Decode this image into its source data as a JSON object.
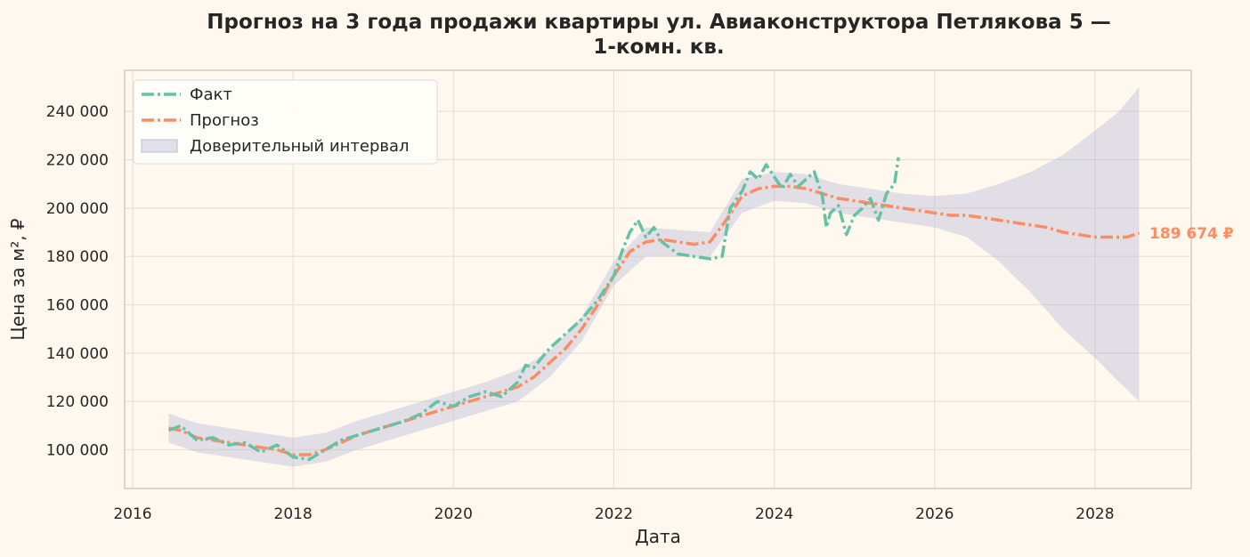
{
  "chart_data": {
    "type": "line",
    "title_line1": "Прогноз на 3 года продажи квартиры  ул. Авиаконструктора Петлякова 5 —",
    "title_line2": "1-комн. кв.",
    "xlabel": "Дата",
    "ylabel": "Цена за м², ₽",
    "xlim": [
      2015.9,
      2029.2
    ],
    "ylim": [
      84000,
      257000
    ],
    "x_ticks": [
      2016,
      2018,
      2020,
      2022,
      2024,
      2026,
      2028
    ],
    "x_tick_labels": [
      "2016",
      "2018",
      "2020",
      "2022",
      "2024",
      "2026",
      "2028"
    ],
    "y_ticks": [
      100000,
      120000,
      140000,
      160000,
      180000,
      200000,
      220000,
      240000
    ],
    "y_tick_labels": [
      "100 000",
      "120 000",
      "140 000",
      "160 000",
      "180 000",
      "200 000",
      "220 000",
      "240 000"
    ],
    "grid": true,
    "legend_position": "top-left",
    "legend": {
      "fact": "Факт",
      "forecast": "Прогноз",
      "interval": "Доверительный интервал"
    },
    "end_label": "189 674 ₽",
    "colors": {
      "fact": "#66c2a5",
      "forecast": "#fc8d62",
      "interval": "#b7bdd9",
      "background": "#fff8ee",
      "plot_background": "#fff8ee",
      "grid": "#e6e0d6"
    },
    "series": [
      {
        "name": "Факт",
        "x": [
          2016.45,
          2016.6,
          2016.8,
          2017.0,
          2017.2,
          2017.4,
          2017.6,
          2017.8,
          2018.0,
          2018.2,
          2018.4,
          2018.6,
          2018.8,
          2019.0,
          2019.2,
          2019.4,
          2019.6,
          2019.8,
          2020.0,
          2020.2,
          2020.4,
          2020.6,
          2020.8,
          2020.9,
          2021.0,
          2021.2,
          2021.4,
          2021.6,
          2021.8,
          2022.0,
          2022.1,
          2022.2,
          2022.3,
          2022.4,
          2022.5,
          2022.6,
          2022.8,
          2023.0,
          2023.2,
          2023.35,
          2023.45,
          2023.6,
          2023.7,
          2023.8,
          2023.9,
          2024.0,
          2024.1,
          2024.2,
          2024.3,
          2024.4,
          2024.5,
          2024.6,
          2024.65,
          2024.7,
          2024.8,
          2024.9,
          2025.0,
          2025.1,
          2025.2,
          2025.3,
          2025.4,
          2025.5,
          2025.55
        ],
        "values": [
          108000,
          110000,
          104000,
          105000,
          102000,
          103000,
          99000,
          102000,
          97000,
          96000,
          100000,
          104000,
          106000,
          108000,
          110000,
          112000,
          115000,
          120000,
          118000,
          122000,
          124000,
          122000,
          128000,
          135000,
          134000,
          142000,
          148000,
          154000,
          162000,
          172000,
          182000,
          190000,
          195000,
          188000,
          192000,
          186000,
          181000,
          180000,
          179000,
          180000,
          200000,
          207000,
          215000,
          212000,
          218000,
          213000,
          208000,
          214000,
          209000,
          212000,
          215000,
          205000,
          192000,
          198000,
          201000,
          189000,
          197000,
          200000,
          204000,
          195000,
          206000,
          210000,
          221000
        ]
      },
      {
        "name": "Прогноз",
        "x": [
          2016.45,
          2016.6,
          2016.8,
          2017.0,
          2017.2,
          2017.4,
          2017.6,
          2017.8,
          2018.0,
          2018.2,
          2018.4,
          2018.6,
          2018.8,
          2019.0,
          2019.2,
          2019.4,
          2019.6,
          2019.8,
          2020.0,
          2020.2,
          2020.4,
          2020.6,
          2020.8,
          2021.0,
          2021.2,
          2021.4,
          2021.6,
          2021.8,
          2022.0,
          2022.2,
          2022.4,
          2022.6,
          2022.8,
          2023.0,
          2023.2,
          2023.4,
          2023.6,
          2023.8,
          2024.0,
          2024.2,
          2024.4,
          2024.6,
          2024.8,
          2025.0,
          2025.2,
          2025.4,
          2025.6,
          2025.8,
          2026.0,
          2026.2,
          2026.4,
          2026.6,
          2026.8,
          2027.0,
          2027.2,
          2027.4,
          2027.6,
          2027.8,
          2028.0,
          2028.2,
          2028.4,
          2028.55
        ],
        "values": [
          109000,
          108000,
          105000,
          104000,
          103000,
          102000,
          101000,
          100000,
          98000,
          98000,
          100000,
          103000,
          106000,
          108000,
          110000,
          112000,
          114000,
          116000,
          118000,
          120000,
          122000,
          124000,
          126000,
          130000,
          136000,
          142000,
          150000,
          160000,
          172000,
          182000,
          186000,
          187000,
          186000,
          185000,
          186000,
          195000,
          205000,
          208000,
          209000,
          209000,
          208000,
          206000,
          204000,
          203000,
          202000,
          201000,
          200000,
          199000,
          198000,
          197000,
          197000,
          196000,
          195000,
          194000,
          193000,
          192000,
          190000,
          189000,
          188000,
          188000,
          188000,
          189674
        ]
      }
    ],
    "interval": {
      "x": [
        2016.45,
        2016.8,
        2017.2,
        2017.6,
        2018.0,
        2018.4,
        2018.8,
        2019.2,
        2019.6,
        2020.0,
        2020.4,
        2020.8,
        2021.2,
        2021.6,
        2022.0,
        2022.4,
        2022.8,
        2023.2,
        2023.6,
        2024.0,
        2024.4,
        2024.8,
        2025.2,
        2025.6,
        2026.0,
        2026.4,
        2026.8,
        2027.2,
        2027.6,
        2028.0,
        2028.3,
        2028.55
      ],
      "upper": [
        115000,
        111000,
        109000,
        107000,
        105000,
        107000,
        112000,
        116000,
        120000,
        124000,
        128000,
        133000,
        141000,
        155000,
        178000,
        192000,
        191000,
        190000,
        212000,
        215000,
        214000,
        210000,
        208000,
        206000,
        205000,
        206000,
        210000,
        215000,
        222000,
        232000,
        240000,
        250000
      ],
      "lower": [
        103000,
        99000,
        97000,
        95000,
        93000,
        95000,
        100000,
        104000,
        108000,
        112000,
        116000,
        120000,
        130000,
        145000,
        168000,
        180000,
        180000,
        180000,
        198000,
        203000,
        202000,
        198000,
        196000,
        194000,
        192000,
        188000,
        178000,
        165000,
        150000,
        138000,
        128000,
        120000
      ]
    }
  }
}
